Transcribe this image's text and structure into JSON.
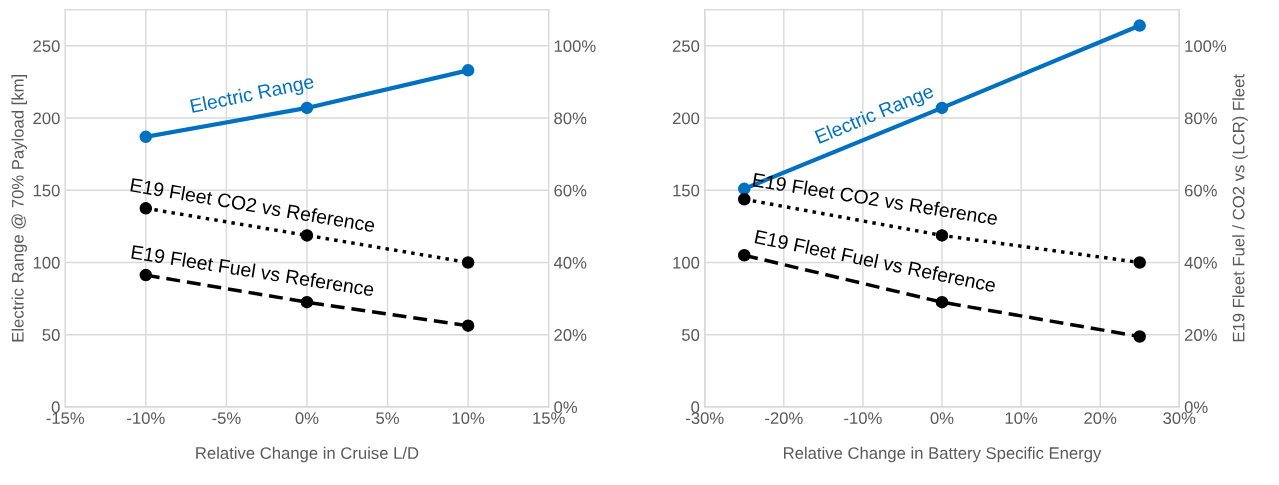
{
  "chart_data": [
    {
      "type": "line",
      "xlabel": "Relative Change in Cruise L/D",
      "ylabel": "Electric Range @ 70% Payload [km]",
      "x": [
        -10,
        0,
        10
      ],
      "series": [
        {
          "name": "Electric Range",
          "color": "#0070c0",
          "values": [
            187,
            207,
            233
          ],
          "marker": "circle",
          "line_style": "solid"
        },
        {
          "name": "E19 Fleet CO2 vs Reference",
          "color": "#000000",
          "values": [
            55,
            47.5,
            40
          ],
          "axis": "y2",
          "marker": "circle",
          "line_style": "dotted"
        },
        {
          "name": "E19 Fleet Fuel vs Reference",
          "color": "#000000",
          "values": [
            36.5,
            29,
            22.5
          ],
          "axis": "y2",
          "marker": "circle",
          "line_style": "dashed"
        }
      ],
      "xlim": [
        -15,
        15
      ],
      "xticks": [
        {
          "value": -15,
          "label": "-15%"
        },
        {
          "value": -10,
          "label": "-10%"
        },
        {
          "value": -5,
          "label": "-5%"
        },
        {
          "value": 0,
          "label": "0%"
        },
        {
          "value": 5,
          "label": "5%"
        },
        {
          "value": 10,
          "label": "10%"
        },
        {
          "value": 15,
          "label": "15%"
        }
      ],
      "ylim": [
        0,
        275
      ],
      "yticks": [
        0,
        50,
        100,
        150,
        200,
        250
      ],
      "y2lim": [
        0,
        110
      ],
      "y2ticks": [
        {
          "value": 0,
          "label": "0%"
        },
        {
          "value": 20,
          "label": "20%"
        },
        {
          "value": 40,
          "label": "40%"
        },
        {
          "value": 60,
          "label": "60%"
        },
        {
          "value": 80,
          "label": "80%"
        },
        {
          "value": 100,
          "label": "100%"
        }
      ],
      "grid": true,
      "legend": false
    },
    {
      "type": "line",
      "xlabel": "Relative Change in Battery Specific Energy",
      "y2label": "E19 Fleet Fuel / CO2 vs (LCR) Fleet",
      "x": [
        -25,
        0,
        25
      ],
      "series": [
        {
          "name": "Electric Range",
          "color": "#0070c0",
          "values": [
            151,
            207,
            264
          ],
          "marker": "circle",
          "line_style": "solid"
        },
        {
          "name": "E19 Fleet CO2 vs Reference",
          "color": "#000000",
          "values": [
            57.5,
            47.5,
            40
          ],
          "axis": "y2",
          "marker": "circle",
          "line_style": "dotted"
        },
        {
          "name": "E19 Fleet Fuel vs Reference",
          "color": "#000000",
          "values": [
            42,
            29,
            19.5
          ],
          "axis": "y2",
          "marker": "circle",
          "line_style": "dashed"
        }
      ],
      "xlim": [
        -30,
        30
      ],
      "xticks": [
        {
          "value": -30,
          "label": "-30%"
        },
        {
          "value": -20,
          "label": "-20%"
        },
        {
          "value": -10,
          "label": "-10%"
        },
        {
          "value": 0,
          "label": "0%"
        },
        {
          "value": 10,
          "label": "10%"
        },
        {
          "value": 20,
          "label": "20%"
        },
        {
          "value": 30,
          "label": "30%"
        }
      ],
      "ylim": [
        0,
        275
      ],
      "yticks": [
        0,
        50,
        100,
        150,
        200,
        250
      ],
      "y2lim": [
        0,
        110
      ],
      "y2ticks": [
        {
          "value": 0,
          "label": "0%"
        },
        {
          "value": 20,
          "label": "20%"
        },
        {
          "value": 40,
          "label": "40%"
        },
        {
          "value": 60,
          "label": "60%"
        },
        {
          "value": 80,
          "label": "80%"
        },
        {
          "value": 100,
          "label": "100%"
        }
      ],
      "grid": true,
      "legend": false
    }
  ]
}
